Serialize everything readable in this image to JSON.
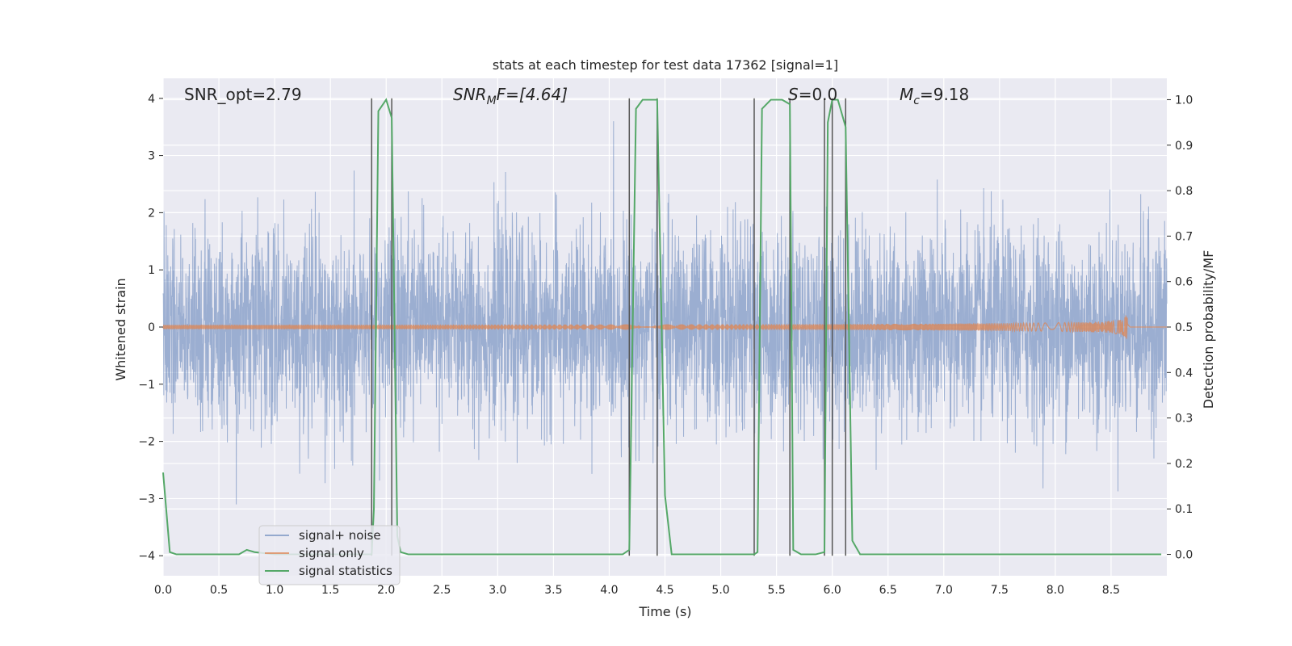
{
  "chart_data": {
    "type": "line",
    "title": "stats at each timestep for test data 17362 [signal=1]",
    "xlabel": "Time (s)",
    "ylabel": "Whitened strain",
    "ylabel_right": "Detection probability/MF",
    "xlim": [
      0.0,
      9.0
    ],
    "ylim": [
      -4.35,
      4.35
    ],
    "ylim_right": [
      -0.047,
      1.047
    ],
    "xticks": [
      0.0,
      0.5,
      1.0,
      1.5,
      2.0,
      2.5,
      3.0,
      3.5,
      4.0,
      4.5,
      5.0,
      5.5,
      6.0,
      6.5,
      7.0,
      7.5,
      8.0,
      8.5
    ],
    "yticks": [
      -4,
      -3,
      -2,
      -1,
      0,
      1,
      2,
      3,
      4
    ],
    "yticks_right": [
      0.0,
      0.1,
      0.2,
      0.3,
      0.4,
      0.5,
      0.6,
      0.7,
      0.8,
      0.9,
      1.0
    ],
    "grid": true,
    "legend_placement": "lower-left",
    "annotations": {
      "snr_opt": "SNR_opt=2.79",
      "snr_mf_base": "SNR",
      "snr_mf_sub": "M",
      "snr_mf_rest": "F=[4.64]",
      "s_var": "S",
      "s_rest": "=0.0",
      "mc_base": "M",
      "mc_sub": "c",
      "mc_rest": "=9.18"
    },
    "series": [
      {
        "name": "signal+ noise",
        "color": "#4c72b0",
        "kind": "noise",
        "n_samples": 4500,
        "approx_std": 0.85,
        "approx_max": 3.6,
        "approx_min": -3.6
      },
      {
        "name": "signal only",
        "color": "#dd8452",
        "kind": "chirp",
        "merger_time": 8.65,
        "peak_amplitude": 0.3
      },
      {
        "name": "signal statistics",
        "color": "#55a868",
        "kind": "line",
        "x": [
          0.0,
          0.06,
          0.12,
          0.2,
          0.3,
          0.5,
          0.68,
          0.75,
          0.82,
          1.0,
          1.2,
          1.5,
          1.87,
          1.89,
          1.93,
          2.0,
          2.05,
          2.1,
          2.13,
          2.2,
          2.5,
          3.0,
          3.5,
          4.0,
          4.12,
          4.18,
          4.24,
          4.3,
          4.35,
          4.4,
          4.43,
          4.5,
          4.56,
          4.7,
          5.0,
          5.2,
          5.3,
          5.33,
          5.37,
          5.45,
          5.55,
          5.62,
          5.65,
          5.72,
          5.85,
          5.93,
          5.96,
          6.0,
          6.05,
          6.12,
          6.18,
          6.25,
          6.4,
          7.0,
          8.0,
          8.95
        ],
        "y": [
          0.18,
          0.005,
          0.0,
          0.0,
          0.0,
          0.0,
          0.0,
          0.01,
          0.005,
          0.0,
          0.0,
          0.0,
          0.0,
          0.1,
          0.975,
          1.0,
          0.96,
          0.04,
          0.005,
          0.0,
          0.0,
          0.0,
          0.0,
          0.0,
          0.0,
          0.01,
          0.98,
          1.0,
          1.0,
          1.0,
          1.0,
          0.13,
          0.0,
          0.0,
          0.0,
          0.0,
          0.0,
          0.005,
          0.98,
          1.0,
          1.0,
          0.99,
          0.01,
          0.0,
          0.0,
          0.005,
          0.95,
          1.0,
          1.0,
          0.94,
          0.03,
          0.0,
          0.0,
          0.0,
          0.0,
          0.0
        ]
      }
    ],
    "vlines": [
      1.87,
      2.05,
      4.18,
      4.43,
      5.3,
      5.62,
      5.93,
      6.0,
      6.12
    ]
  }
}
